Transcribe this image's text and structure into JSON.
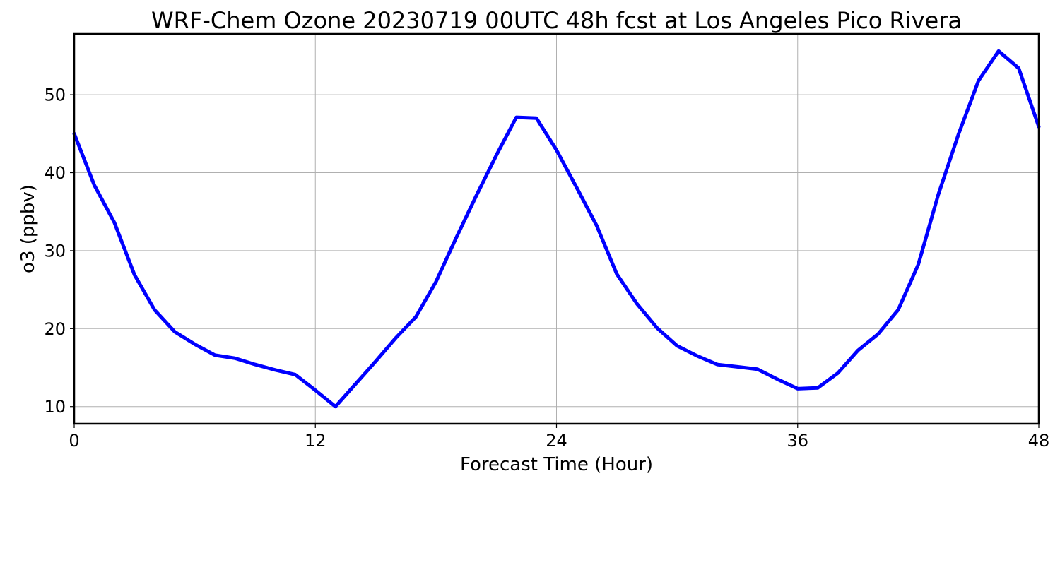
{
  "chart_data": {
    "type": "line",
    "title": "WRF-Chem Ozone  20230719 00UTC 48h fcst at Los Angeles Pico Rivera",
    "xlabel": "Forecast Time (Hour)",
    "ylabel": "o3  (ppbv)",
    "xlim": [
      0,
      48
    ],
    "ylim": [
      7.8,
      57.8
    ],
    "xticks": [
      0,
      12,
      24,
      36,
      48
    ],
    "yticks": [
      10,
      20,
      30,
      40,
      50
    ],
    "grid": true,
    "legend": "none",
    "series": [
      {
        "color": "#0000ff",
        "x": [
          0,
          1,
          2,
          3,
          4,
          5,
          6,
          7,
          8,
          9,
          10,
          11,
          12,
          13,
          14,
          15,
          16,
          17,
          18,
          19,
          20,
          21,
          22,
          23,
          24,
          25,
          26,
          27,
          28,
          29,
          30,
          31,
          32,
          33,
          34,
          35,
          36,
          37,
          38,
          39,
          40,
          41,
          42,
          43,
          44,
          45,
          46,
          47,
          48
        ],
        "values": [
          45.0,
          38.4,
          33.6,
          26.9,
          22.4,
          19.6,
          18.0,
          16.6,
          16.2,
          15.4,
          14.7,
          14.1,
          12.1,
          10.0,
          12.9,
          15.8,
          18.8,
          21.5,
          26.0,
          31.6,
          37.0,
          42.2,
          47.1,
          47.0,
          42.9,
          38.1,
          33.2,
          27.0,
          23.2,
          20.1,
          17.8,
          16.5,
          15.4,
          15.1,
          14.8,
          13.5,
          12.3,
          12.4,
          14.3,
          17.2,
          19.3,
          22.4,
          28.2,
          37.2,
          44.9,
          51.8,
          55.6,
          53.4,
          45.9
        ]
      }
    ]
  }
}
